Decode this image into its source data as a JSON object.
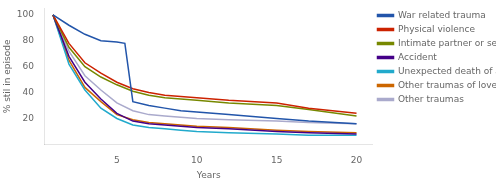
{
  "chart_data": {
    "type": "line",
    "xlabel": "Years",
    "ylabel": "% stil in episode",
    "xlim": [
      0.5,
      21
    ],
    "ylim": [
      0,
      105
    ],
    "xticks": [
      5,
      10,
      15,
      20
    ],
    "yticks": [
      20,
      40,
      60,
      80,
      100
    ],
    "grid": false,
    "legend": "right",
    "series": [
      {
        "name": "War related trauma",
        "color": "#2255aa",
        "x": [
          1,
          2,
          3,
          4,
          5,
          5.5,
          6,
          7,
          8,
          9,
          10,
          12,
          15,
          17,
          20
        ],
        "values": [
          100,
          92,
          85,
          80,
          79,
          78,
          33,
          30,
          28,
          26,
          25,
          23,
          20,
          18,
          16
        ]
      },
      {
        "name": "Physical violence",
        "color": "#cc2200",
        "x": [
          1,
          2,
          3,
          4,
          5,
          6,
          7,
          8,
          9,
          10,
          12,
          15,
          17,
          20
        ],
        "values": [
          100,
          78,
          63,
          55,
          48,
          43,
          40,
          38,
          37,
          36,
          34,
          32,
          28,
          24
        ]
      },
      {
        "name": "Intimate partner or sexual violence",
        "color": "#778800",
        "x": [
          1,
          2,
          3,
          4,
          5,
          6,
          7,
          8,
          9,
          10,
          12,
          15,
          17,
          20
        ],
        "values": [
          100,
          75,
          60,
          52,
          46,
          41,
          38,
          36,
          35,
          34,
          32,
          30,
          27,
          22
        ]
      },
      {
        "name": "Accident",
        "color": "#440088",
        "x": [
          1,
          2,
          3,
          4,
          5,
          6,
          7,
          8,
          9,
          10,
          12,
          15,
          17,
          20
        ],
        "values": [
          100,
          68,
          48,
          35,
          24,
          18,
          16,
          15,
          14,
          13,
          12,
          10,
          9,
          8
        ]
      },
      {
        "name": "Unexpected death of a loved one",
        "color": "#22aacc",
        "x": [
          1,
          2,
          3,
          4,
          5,
          6,
          7,
          8,
          9,
          10,
          12,
          15,
          17,
          20
        ],
        "values": [
          100,
          62,
          42,
          28,
          20,
          15,
          13,
          12,
          11,
          10,
          9,
          8,
          7,
          7
        ]
      },
      {
        "name": "Other traumas of loved ones or witnessed",
        "color": "#cc6600",
        "x": [
          1,
          2,
          3,
          4,
          5,
          6,
          7,
          8,
          9,
          10,
          12,
          15,
          17,
          20
        ],
        "values": [
          100,
          65,
          44,
          33,
          23,
          19,
          17,
          16,
          15,
          14,
          13,
          11,
          10,
          9
        ]
      },
      {
        "name": "Other traumas",
        "color": "#aaaacc",
        "x": [
          1,
          2,
          3,
          4,
          5,
          6,
          7,
          8,
          9,
          10,
          12,
          15,
          17,
          20
        ],
        "values": [
          100,
          72,
          53,
          42,
          32,
          26,
          23,
          22,
          21,
          20,
          19,
          18,
          17,
          16
        ]
      }
    ]
  }
}
